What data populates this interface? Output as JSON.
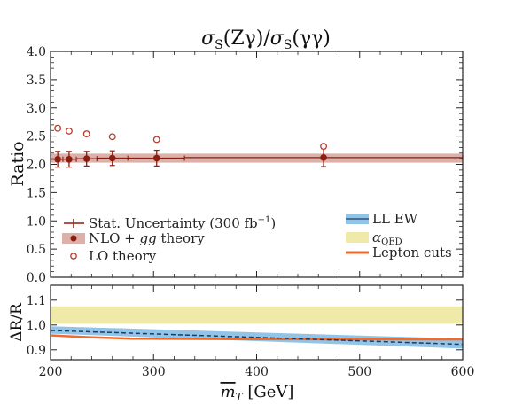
{
  "chart_data": [
    {
      "type": "scatter",
      "panel": "main",
      "title": "σ_S(Zγ)/σ_S(γγ)",
      "xlabel": "",
      "ylabel": "Ratio",
      "xlim": [
        200,
        600
      ],
      "ylim": [
        0.0,
        4.0
      ],
      "yticks": [
        "0.0",
        "0.5",
        "1.0",
        "1.5",
        "2.0",
        "2.5",
        "3.0",
        "3.5",
        "4.0"
      ],
      "grid": false,
      "legend_placement": "bottom",
      "legend": {
        "stat": "Stat. Uncertainty (300 fb",
        "stat_sup": "−1",
        "stat_close": ")",
        "nlo_a": "NLO + ",
        "nlo_b": "gg",
        "nlo_c": " theory",
        "lo": "LO theory"
      },
      "series": [
        {
          "name": "NLO + gg theory",
          "x": [
            207,
            218,
            235,
            260,
            303,
            465
          ],
          "y": [
            2.09,
            2.09,
            2.1,
            2.11,
            2.11,
            2.12
          ],
          "stat_err": [
            0.14,
            0.14,
            0.13,
            0.13,
            0.14,
            0.16
          ],
          "bin_low": [
            200,
            212,
            225,
            245,
            275,
            330
          ],
          "bin_high": [
            212,
            225,
            245,
            275,
            330,
            600
          ]
        },
        {
          "name": "LO theory",
          "x": [
            207,
            218,
            235,
            260,
            303,
            465
          ],
          "y": [
            2.64,
            2.59,
            2.54,
            2.49,
            2.44,
            2.32
          ]
        }
      ],
      "theory_band": {
        "low": 2.03,
        "high": 2.19
      },
      "colors": {
        "nlo": "#8b1e10",
        "band": "#ddb0aa",
        "lo": "#b83a28"
      }
    },
    {
      "type": "area",
      "panel": "ratio",
      "xlabel": "m̅_T [GeV]",
      "xlabel_main": "m",
      "xlabel_sub": "T",
      "xlabel_unit": " [GeV]",
      "ylabel": "ΔR/R",
      "xlim": [
        200,
        600
      ],
      "ylim": [
        0.86,
        1.16
      ],
      "xticks": [
        "200",
        "300",
        "400",
        "500",
        "600"
      ],
      "yticks": [
        "0.9",
        "1.0",
        "1.1"
      ],
      "legend_placement": "top-right of main panel",
      "legend": {
        "llew": "LL EW",
        "aqed": "α",
        "aqed_sub": "QED",
        "lepton": "Lepton cuts"
      },
      "series": [
        {
          "name": "LL EW",
          "x": [
            200,
            600
          ],
          "low": [
            0.965,
            0.905
          ],
          "high": [
            0.995,
            0.945
          ],
          "center": [
            0.978,
            0.922
          ]
        },
        {
          "name": "α_QED",
          "x": [
            200,
            600
          ],
          "low": [
            1.005,
            1.005
          ],
          "high": [
            1.075,
            1.075
          ]
        },
        {
          "name": "Lepton cuts",
          "x": [
            200,
            215,
            240,
            280,
            400,
            600
          ],
          "y": [
            0.958,
            0.955,
            0.95,
            0.945,
            0.943,
            0.942
          ]
        }
      ],
      "colors": {
        "llew": "#92c4e8",
        "llew_line": "#1c3a66",
        "aqed": "#efeaaa",
        "lepton": "#f06a2a"
      }
    }
  ]
}
